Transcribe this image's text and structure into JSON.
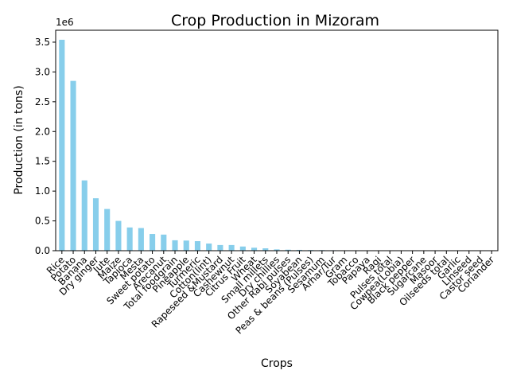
{
  "chart_data": {
    "type": "bar",
    "title": "Crop Production in Mizoram",
    "xlabel": "Crops",
    "ylabel": "Production (in tons)",
    "y_offset_text": "1e6",
    "ylim": [
      0,
      3700000
    ],
    "yticks": [
      0,
      500000,
      1000000,
      1500000,
      2000000,
      2500000,
      3000000,
      3500000
    ],
    "ytick_labels": [
      "0.0",
      "0.5",
      "1.0",
      "1.5",
      "2.0",
      "2.5",
      "3.0",
      "3.5"
    ],
    "bar_color": "#87ceeb",
    "grid": false,
    "legend": "none",
    "categories": [
      "Rice",
      "Potato",
      "Banana",
      "Dry ginger",
      "Jute",
      "Maize",
      "Tapioca",
      "Mesta",
      "Sweet potato",
      "Arecanut",
      "Total foodgrain",
      "Pineapple",
      "Turmeric",
      "Cotton(lint)",
      "Rapeseed &Mustard",
      "Cashewnut",
      "Citrus Fruit",
      "Wheat",
      "Small millets",
      "Dry chillies",
      "Other Rabi pulses",
      "Soyabean",
      "Peas & beans (Pulses)",
      "Sesamum",
      "Arhar/Tur",
      "Gram",
      "Tobacco",
      "Papaya",
      "Ragi",
      "Pulses total",
      "Cowpea(Lobia)",
      "Black pepper",
      "Sugarcane",
      "Masoor",
      "Oilseeds total",
      "Garlic",
      "Linseed",
      "Castor seed",
      "Coriander"
    ],
    "values": [
      3540000,
      2850000,
      1180000,
      880000,
      700000,
      500000,
      390000,
      380000,
      280000,
      270000,
      175000,
      170000,
      160000,
      120000,
      95000,
      95000,
      70000,
      50000,
      40000,
      22000,
      17000,
      14000,
      11000,
      10000,
      8000,
      6000,
      5000,
      4000,
      3500,
      3000,
      2500,
      2000,
      1500,
      1200,
      1000,
      800,
      600,
      400,
      200
    ]
  }
}
